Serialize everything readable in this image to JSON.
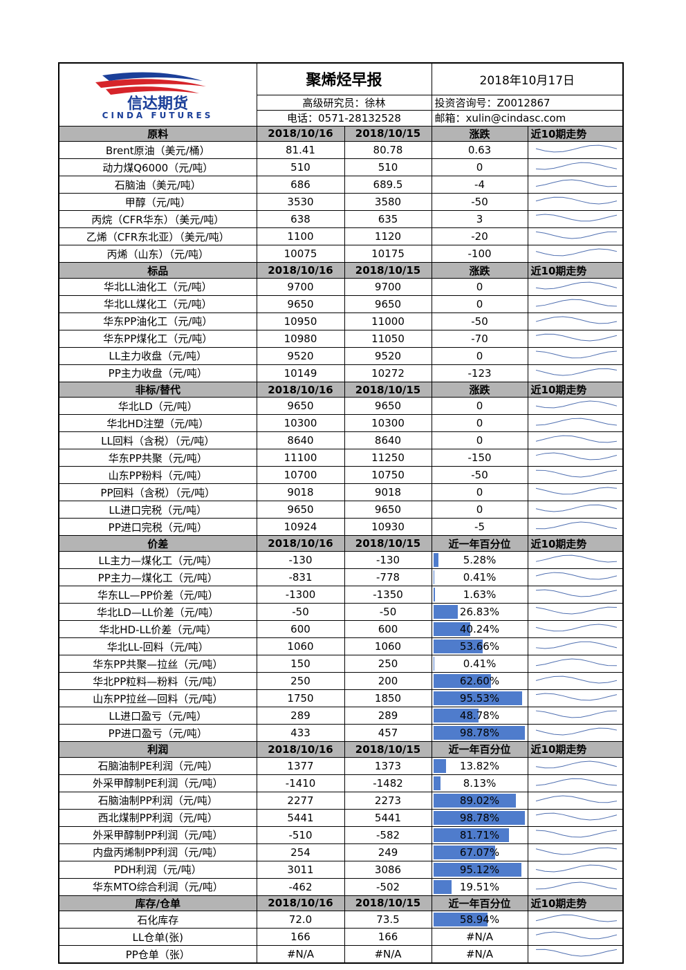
{
  "header": {
    "logo_cn": "信达期货",
    "logo_en": "CINDA FUTURES",
    "title": "聚烯烃早报",
    "date": "2018年10月17日",
    "researcher": "高级研究员：徐林",
    "consult": "投资咨询号：Z0012867",
    "phone": "电话：0571-28132528",
    "email": "邮箱：xulin@cindasc.com"
  },
  "sections": [
    {
      "name": "原料",
      "columns": [
        "2018/10/16",
        "2018/10/15",
        "涨跌",
        "近10期走势"
      ],
      "rows": [
        [
          "Brent原油（美元/桶）",
          "81.41",
          "80.78",
          "0.63"
        ],
        [
          "动力煤Q6000（元/吨）",
          "510",
          "510",
          "0"
        ],
        [
          "石脑油（美元/吨）",
          "686",
          "689.5",
          "-4"
        ],
        [
          "甲醇（元/吨）",
          "3530",
          "3580",
          "-50"
        ],
        [
          "丙烷（CFR华东）（美元/吨）",
          "638",
          "635",
          "3"
        ],
        [
          "乙烯（CFR东北亚）（美元/吨）",
          "1100",
          "1120",
          "-20"
        ],
        [
          "丙烯（山东）（元/吨）",
          "10075",
          "10175",
          "-100"
        ]
      ]
    },
    {
      "name": "标品",
      "columns": [
        "2018/10/16",
        "2018/10/15",
        "涨跌",
        "近10期走势"
      ],
      "rows": [
        [
          "华北LL油化工（元/吨）",
          "9700",
          "9700",
          "0"
        ],
        [
          "华北LL煤化工（元/吨）",
          "9650",
          "9650",
          "0"
        ],
        [
          "华东PP油化工（元/吨）",
          "10950",
          "11000",
          "-50"
        ],
        [
          "华东PP煤化工（元/吨）",
          "10980",
          "11050",
          "-70"
        ],
        [
          "LL主力收盘（元/吨）",
          "9520",
          "9520",
          "0"
        ],
        [
          "PP主力收盘（元/吨）",
          "10149",
          "10272",
          "-123"
        ]
      ]
    },
    {
      "name": "非标/替代",
      "columns": [
        "2018/10/16",
        "2018/10/15",
        "涨跌",
        "近10期走势"
      ],
      "rows": [
        [
          "华北LD（元/吨）",
          "9650",
          "9650",
          "0"
        ],
        [
          "华北HD注塑（元/吨）",
          "10300",
          "10300",
          "0"
        ],
        [
          "LL回料（含税）（元/吨）",
          "8640",
          "8640",
          "0"
        ],
        [
          "华东PP共聚（元/吨）",
          "11100",
          "11250",
          "-150"
        ],
        [
          "山东PP粉料（元/吨）",
          "10700",
          "10750",
          "-50"
        ],
        [
          "PP回料（含税）（元/吨）",
          "9018",
          "9018",
          "0"
        ],
        [
          "LL进口完税（元/吨）",
          "9650",
          "9650",
          "0"
        ],
        [
          "PP进口完税（元/吨）",
          "10924",
          "10930",
          "-5"
        ]
      ]
    },
    {
      "name": "价差",
      "columns": [
        "2018/10/16",
        "2018/10/15",
        "近一年百分位",
        "近10期走势"
      ],
      "rows": [
        [
          "LL主力—煤化工（元/吨）",
          "-130",
          "-130",
          {
            "value": 5.28,
            "label": "5.28%"
          }
        ],
        [
          "PP主力—煤化工（元/吨）",
          "-831",
          "-778",
          {
            "value": 0.41,
            "label": "0.41%"
          }
        ],
        [
          "华东LL—PP价差（元/吨）",
          "-1300",
          "-1350",
          {
            "value": 1.63,
            "label": "1.63%"
          }
        ],
        [
          "华北LD—LL价差（元/吨）",
          "-50",
          "-50",
          {
            "value": 26.83,
            "label": "26.83%"
          }
        ],
        [
          "华北HD-LL价差（元/吨）",
          "600",
          "600",
          {
            "value": 40.24,
            "label": "40.24%"
          }
        ],
        [
          "华北LL-回料（元/吨）",
          "1060",
          "1060",
          {
            "value": 53.66,
            "label": "53.66%"
          }
        ],
        [
          "华东PP共聚—拉丝（元/吨）",
          "150",
          "250",
          {
            "value": 0.41,
            "label": "0.41%"
          }
        ],
        [
          "华北PP粒料—粉料（元/吨）",
          "250",
          "200",
          {
            "value": 62.6,
            "label": "62.60%"
          }
        ],
        [
          "山东PP拉丝—回料（元/吨）",
          "1750",
          "1850",
          {
            "value": 95.53,
            "label": "95.53%"
          }
        ],
        [
          "LL进口盈亏（元/吨）",
          "289",
          "289",
          {
            "value": 48.78,
            "label": "48.78%"
          }
        ],
        [
          "PP进口盈亏（元/吨）",
          "433",
          "457",
          {
            "value": 98.78,
            "label": "98.78%"
          }
        ]
      ]
    },
    {
      "name": "利润",
      "columns": [
        "2018/10/16",
        "2018/10/15",
        "近一年百分位",
        "近10期走势"
      ],
      "rows": [
        [
          "石脑油制PE利润（元/吨）",
          "1377",
          "1373",
          {
            "value": 13.82,
            "label": "13.82%"
          }
        ],
        [
          "外采甲醇制PE利润（元/吨）",
          "-1410",
          "-1482",
          {
            "value": 8.13,
            "label": "8.13%"
          }
        ],
        [
          "石脑油制PP利润（元/吨）",
          "2277",
          "2273",
          {
            "value": 89.02,
            "label": "89.02%"
          }
        ],
        [
          "西北煤制PP利润（元/吨）",
          "5441",
          "5441",
          {
            "value": 98.78,
            "label": "98.78%"
          }
        ],
        [
          "外采甲醇制PP利润（元/吨）",
          "-510",
          "-582",
          {
            "value": 81.71,
            "label": "81.71%"
          }
        ],
        [
          "内盘丙烯制PP利润（元/吨）",
          "254",
          "249",
          {
            "value": 67.07,
            "label": "67.07%"
          }
        ],
        [
          "PDH利润（元/吨）",
          "3011",
          "3086",
          {
            "value": 95.12,
            "label": "95.12%"
          }
        ],
        [
          "华东MTO综合利润（元/吨）",
          "-462",
          "-502",
          {
            "value": 19.51,
            "label": "19.51%"
          }
        ]
      ]
    },
    {
      "name": "库存/仓单",
      "columns": [
        "2018/10/16",
        "2018/10/15",
        "近一年百分位",
        "近10期走势"
      ],
      "rows": [
        [
          "石化库存",
          "72.0",
          "73.5",
          {
            "value": 58.94,
            "label": "58.94%"
          }
        ],
        [
          "LL仓单(张)",
          "166",
          "166",
          "#N/A"
        ],
        [
          "PP仓单（张）",
          "#N/A",
          "#N/A",
          "#N/A"
        ]
      ]
    }
  ]
}
